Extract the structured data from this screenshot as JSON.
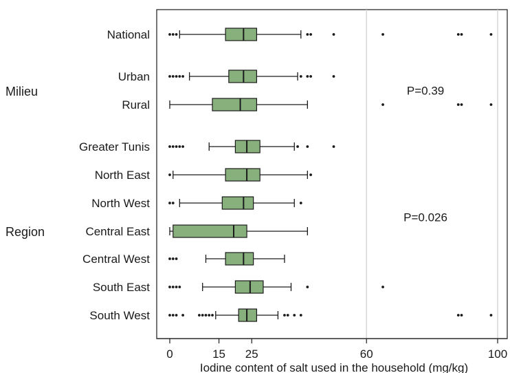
{
  "chart_data": {
    "type": "boxplot",
    "orientation": "horizontal",
    "xlabel": "Iodine content of salt used in the household (mg/kg)",
    "xlim": [
      -3,
      103
    ],
    "x_ticks": [
      0,
      15,
      25,
      60,
      100
    ],
    "x_tick_labels": [
      "0",
      "15",
      "25",
      "60",
      "100"
    ],
    "vertical_gridlines": [
      60,
      100
    ],
    "box_color": "#88b07c",
    "groups": [
      {
        "name": "Milieu",
        "rows": [
          "Urban",
          "Rural"
        ]
      },
      {
        "name": "Region",
        "rows": [
          "Greater Tunis",
          "North East",
          "North West",
          "Central East",
          "Central West",
          "South East",
          "South West"
        ]
      }
    ],
    "annotations": [
      {
        "text": "P=0.39",
        "x": 78,
        "between_rows": [
          "Urban",
          "Rural"
        ]
      },
      {
        "text": "P=0.026",
        "x": 78,
        "between_rows": [
          "North West",
          "Central East"
        ]
      }
    ],
    "rows": [
      {
        "label": "National",
        "whisker_low": 3,
        "q1": 17,
        "median": 22.5,
        "q3": 26.5,
        "whisker_high": 40,
        "outliers": [
          0,
          1,
          2,
          42,
          43,
          50,
          65,
          88,
          89,
          98
        ]
      },
      {
        "label": "Urban",
        "whisker_low": 6,
        "q1": 18,
        "median": 22.5,
        "q3": 26.5,
        "whisker_high": 39,
        "outliers": [
          0,
          1,
          2,
          3,
          4,
          40,
          42,
          43,
          50
        ]
      },
      {
        "label": "Rural",
        "whisker_low": 0,
        "q1": 13,
        "median": 21.5,
        "q3": 26.5,
        "whisker_high": 42,
        "outliers": [
          65,
          88,
          89,
          98
        ]
      },
      {
        "label": "Greater Tunis",
        "whisker_low": 12,
        "q1": 20,
        "median": 23.5,
        "q3": 27.5,
        "whisker_high": 38,
        "outliers": [
          0,
          1,
          2,
          3,
          4,
          39,
          42,
          50
        ]
      },
      {
        "label": "North East",
        "whisker_low": 1,
        "q1": 17,
        "median": 23.5,
        "q3": 27.5,
        "whisker_high": 42,
        "outliers": [
          0,
          43
        ]
      },
      {
        "label": "North West",
        "whisker_low": 3,
        "q1": 16,
        "median": 22.5,
        "q3": 25.5,
        "whisker_high": 38,
        "outliers": [
          0,
          1,
          40
        ]
      },
      {
        "label": "Central East",
        "whisker_low": 0,
        "q1": 1,
        "median": 19.5,
        "q3": 23.5,
        "whisker_high": 42,
        "outliers": []
      },
      {
        "label": "Central West",
        "whisker_low": 11,
        "q1": 17,
        "median": 22.5,
        "q3": 25.5,
        "whisker_high": 35,
        "outliers": [
          0,
          1,
          2
        ]
      },
      {
        "label": "South East",
        "whisker_low": 10,
        "q1": 20,
        "median": 24.5,
        "q3": 28.5,
        "whisker_high": 37,
        "outliers": [
          0,
          1,
          2,
          3,
          42,
          65
        ]
      },
      {
        "label": "South West",
        "whisker_low": 14,
        "q1": 21,
        "median": 23.5,
        "q3": 26.5,
        "whisker_high": 33,
        "outliers": [
          0,
          1,
          2,
          4,
          9,
          10,
          11,
          12,
          13,
          35,
          36,
          38,
          40,
          88,
          89,
          98
        ]
      }
    ]
  }
}
